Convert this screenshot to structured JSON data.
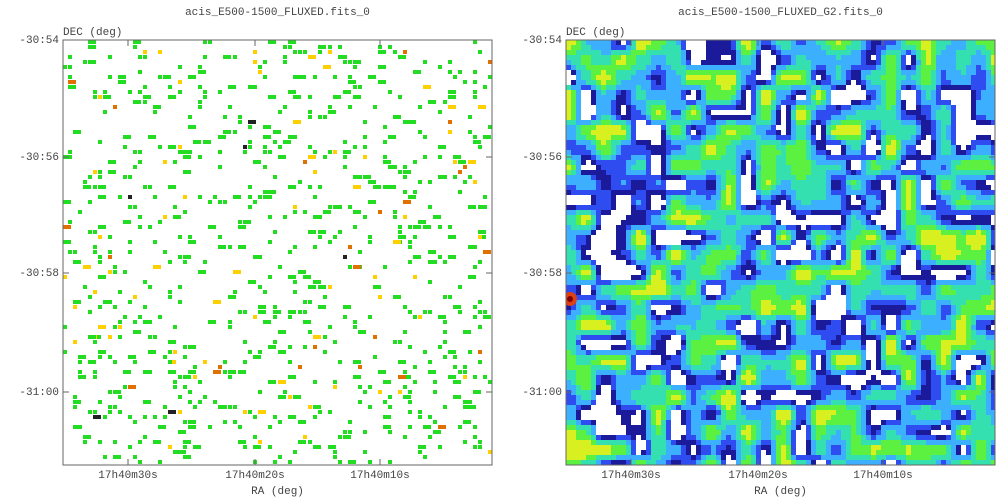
{
  "panels": [
    {
      "title": "acis_E500-1500_FLUXED.fits_0",
      "x_label": "RA (deg)",
      "y_label": "DEC (deg)",
      "x_ticks": [
        "17h40m30s",
        "17h40m20s",
        "17h40m10s"
      ],
      "y_ticks": [
        "-30:54",
        "-30:56",
        "-30:58",
        "-31:00"
      ]
    },
    {
      "title": "acis_E500-1500_FLUXED_G2.fits_0",
      "x_label": "RA (deg)",
      "y_label": "DEC (deg)",
      "x_ticks": [
        "17h40m30s",
        "17h40m20s",
        "17h40m10s"
      ],
      "y_ticks": [
        "-30:54",
        "-30:56",
        "-30:58",
        "-31:00"
      ]
    }
  ]
}
